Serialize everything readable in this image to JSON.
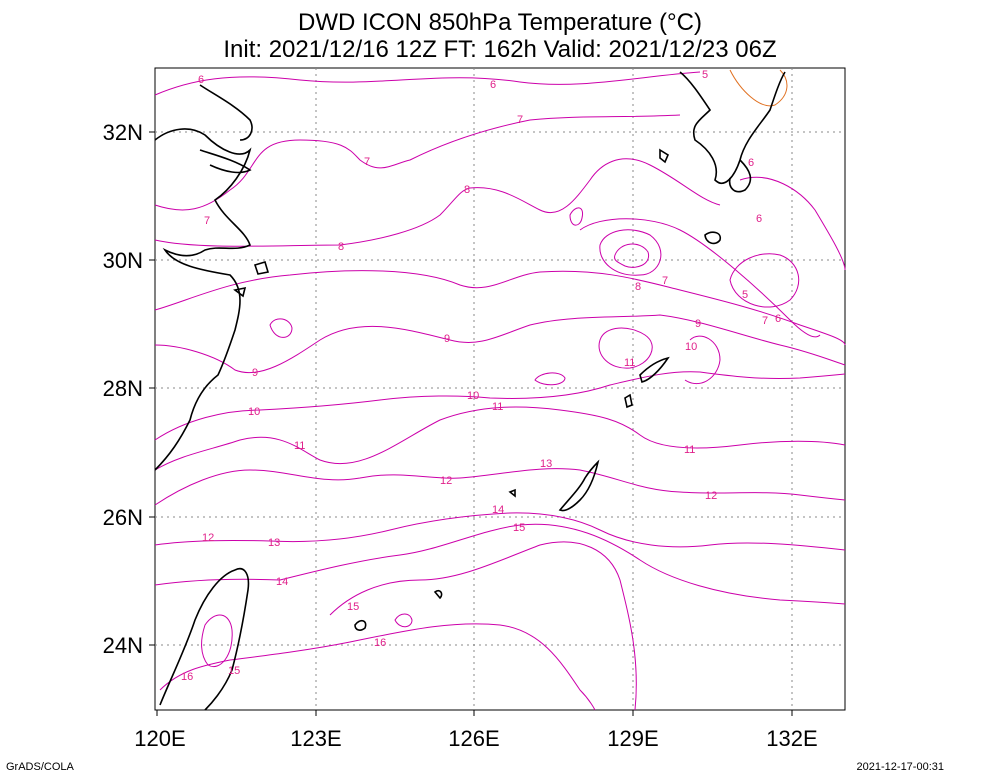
{
  "title": {
    "line1": "DWD ICON 850hPa Temperature (°C)",
    "line2": "Init: 2021/12/16 12Z  FT: 162h  Valid: 2021/12/23 06Z"
  },
  "axes": {
    "lon_ticks": [
      "120E",
      "123E",
      "126E",
      "129E",
      "132E"
    ],
    "lat_ticks": [
      "32N",
      "30N",
      "28N",
      "26N",
      "24N"
    ]
  },
  "contour_labels": [
    "6",
    "6",
    "7",
    "7",
    "7",
    "8",
    "8",
    "8",
    "7",
    "6",
    "6",
    "5",
    "7",
    "6",
    "9",
    "9",
    "9",
    "10",
    "10",
    "11",
    "10",
    "11",
    "11",
    "11",
    "12",
    "12",
    "12",
    "13",
    "13",
    "14",
    "14",
    "15",
    "15",
    "16",
    "16",
    "15",
    "5"
  ],
  "colors": {
    "contour": "#cc00aa",
    "contour_label": "#e0208a",
    "warm_contour": "#e07020",
    "coast": "#000000",
    "grid": "#888888"
  },
  "footer": {
    "left": "GrADS/COLA",
    "right": "2021-12-17-00:31"
  }
}
